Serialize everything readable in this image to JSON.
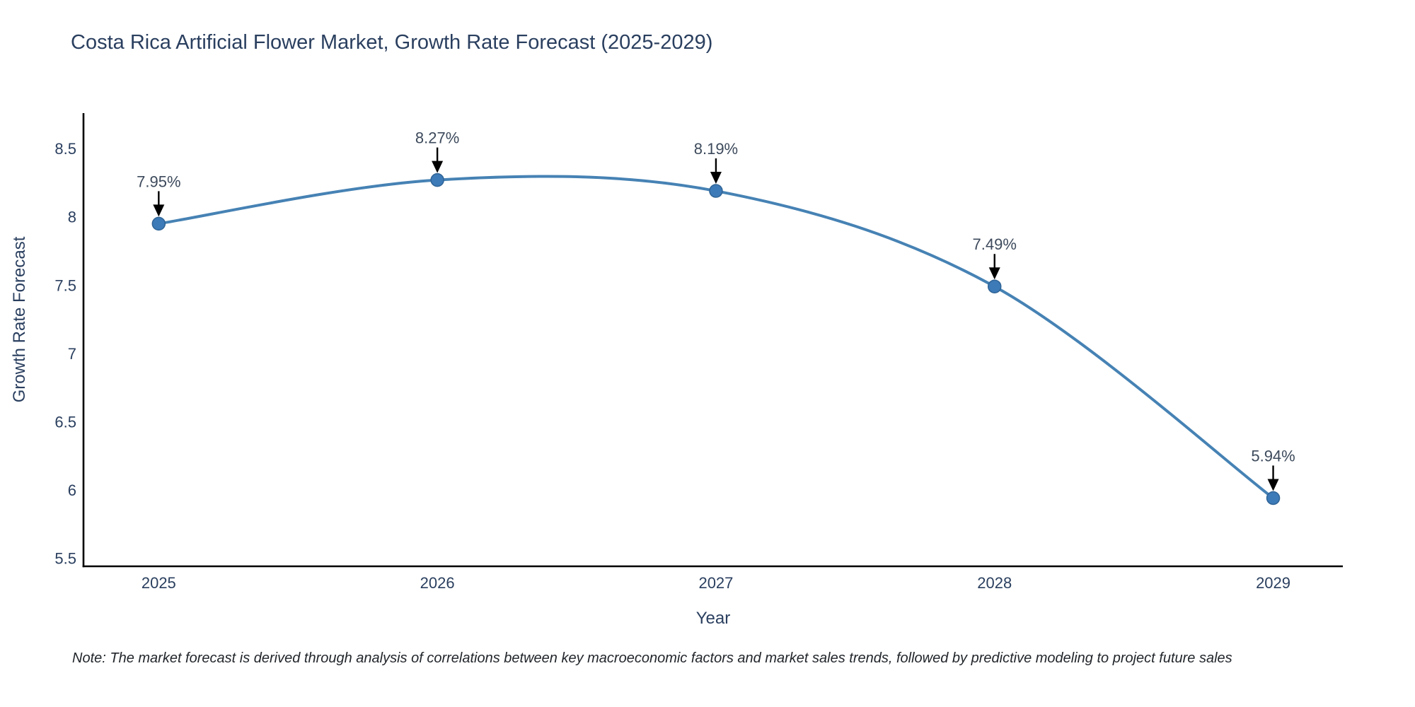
{
  "title": "Costa Rica Artificial Flower Market, Growth Rate Forecast (2025-2029)",
  "note": "Note: The market forecast is derived through analysis of correlations between key macroeconomic factors and market sales trends, followed by predictive modeling to project future sales",
  "chart_data": {
    "type": "line",
    "title": "Costa Rica Artificial Flower Market, Growth Rate Forecast (2025-2029)",
    "xlabel": "Year",
    "ylabel": "Growth Rate Forecast",
    "x": [
      2025,
      2026,
      2027,
      2028,
      2029
    ],
    "series": [
      {
        "name": "Growth Rate Forecast",
        "values": [
          7.95,
          8.27,
          8.19,
          7.49,
          5.94
        ],
        "point_labels": [
          "7.95%",
          "8.27%",
          "8.19%",
          "7.49%",
          "5.94%"
        ]
      }
    ],
    "line_shape": "spline",
    "markers": true,
    "grid": false,
    "legend_position": "none",
    "xlim": [
      2024.73,
      2029.25
    ],
    "ylim": [
      5.44,
      8.76
    ],
    "yticks": [
      8.5,
      8,
      7.5,
      7,
      6.5,
      6,
      5.5
    ],
    "ytick_labels": [
      "8.5",
      "8",
      "7.5",
      "7",
      "6.5",
      "6",
      "5.5"
    ],
    "xtick_labels": [
      "2025",
      "2026",
      "2027",
      "2028",
      "2029"
    ],
    "colors": {
      "line": "#4682b4",
      "marker_fill": "#3d7ab8",
      "marker_edge": "#2f6496",
      "axis_line": "#000000",
      "tick_text": "#2a3f5f",
      "title_text": "#2a3f5f",
      "annotation_text": "#3d4a5c",
      "arrow": "#000000",
      "background": "#ffffff"
    }
  }
}
